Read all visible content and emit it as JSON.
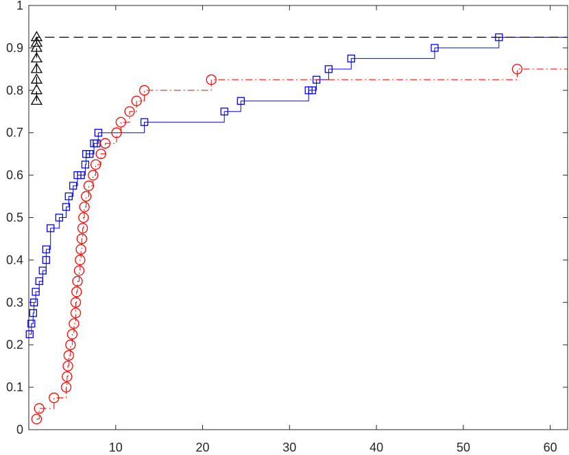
{
  "chart_data": {
    "type": "line",
    "title": "",
    "xlabel": "",
    "ylabel": "",
    "xlim": [
      0,
      62
    ],
    "ylim": [
      0,
      1
    ],
    "xticks": [
      10,
      20,
      30,
      40,
      50,
      60
    ],
    "yticks": [
      0,
      0.1,
      0.2,
      0.3,
      0.4,
      0.5,
      0.6,
      0.7,
      0.8,
      0.9,
      1
    ],
    "xtick_labels": [
      "10",
      "20",
      "30",
      "40",
      "50",
      "60"
    ],
    "ytick_labels": [
      "0",
      "0.1",
      "0.2",
      "0.3",
      "0.4",
      "0.5",
      "0.6",
      "0.7",
      "0.8",
      "0.9",
      "1"
    ],
    "grid": false,
    "legend": "none",
    "series": [
      {
        "color": "#0000ff",
        "line_style": "solid",
        "marker": "square",
        "x": [
          0.1,
          0.3,
          0.5,
          0.6,
          0.8,
          1.2,
          1.6,
          2.0,
          2.0,
          2.5,
          3.5,
          4.3,
          4.6,
          5.1,
          5.6,
          6.0,
          6.5,
          6.6,
          7.0,
          7.5,
          7.8,
          8.0,
          13.3,
          22.5,
          24.4,
          32.2,
          32.6,
          33.1,
          34.5,
          37.1,
          46.7,
          54.1
        ],
        "y": [
          0.225,
          0.25,
          0.275,
          0.3,
          0.325,
          0.35,
          0.375,
          0.4,
          0.425,
          0.475,
          0.5,
          0.525,
          0.55,
          0.575,
          0.6,
          0.6,
          0.625,
          0.65,
          0.65,
          0.675,
          0.675,
          0.7,
          0.725,
          0.75,
          0.775,
          0.8,
          0.8,
          0.825,
          0.85,
          0.875,
          0.9,
          0.925
        ]
      },
      {
        "color": "#ff0000",
        "line_style": "dash-dot",
        "marker": "circle",
        "x": [
          0.9,
          1.2,
          2.9,
          4.3,
          4.4,
          4.5,
          4.6,
          4.8,
          5.0,
          5.2,
          5.4,
          5.4,
          5.5,
          5.6,
          5.8,
          5.9,
          6.0,
          6.1,
          6.2,
          6.3,
          6.4,
          6.6,
          6.9,
          7.4,
          7.7,
          8.3,
          8.8,
          10.1,
          10.6,
          11.6,
          12.4,
          13.3,
          21.0,
          56.2
        ],
        "y": [
          0.025,
          0.05,
          0.075,
          0.1,
          0.125,
          0.15,
          0.175,
          0.2,
          0.225,
          0.25,
          0.275,
          0.3,
          0.325,
          0.35,
          0.375,
          0.4,
          0.425,
          0.45,
          0.475,
          0.5,
          0.525,
          0.55,
          0.575,
          0.6,
          0.625,
          0.65,
          0.675,
          0.7,
          0.725,
          0.75,
          0.775,
          0.8,
          0.825,
          0.85
        ]
      },
      {
        "color": "#000000",
        "line_style": "dashed",
        "marker": "triangle",
        "x": [
          0.9,
          0.9,
          0.9,
          0.9,
          0.9,
          0.9,
          0.9,
          0.9
        ],
        "y": [
          0.775,
          0.8,
          0.825,
          0.85,
          0.875,
          0.9,
          0.912,
          0.925
        ]
      }
    ]
  }
}
